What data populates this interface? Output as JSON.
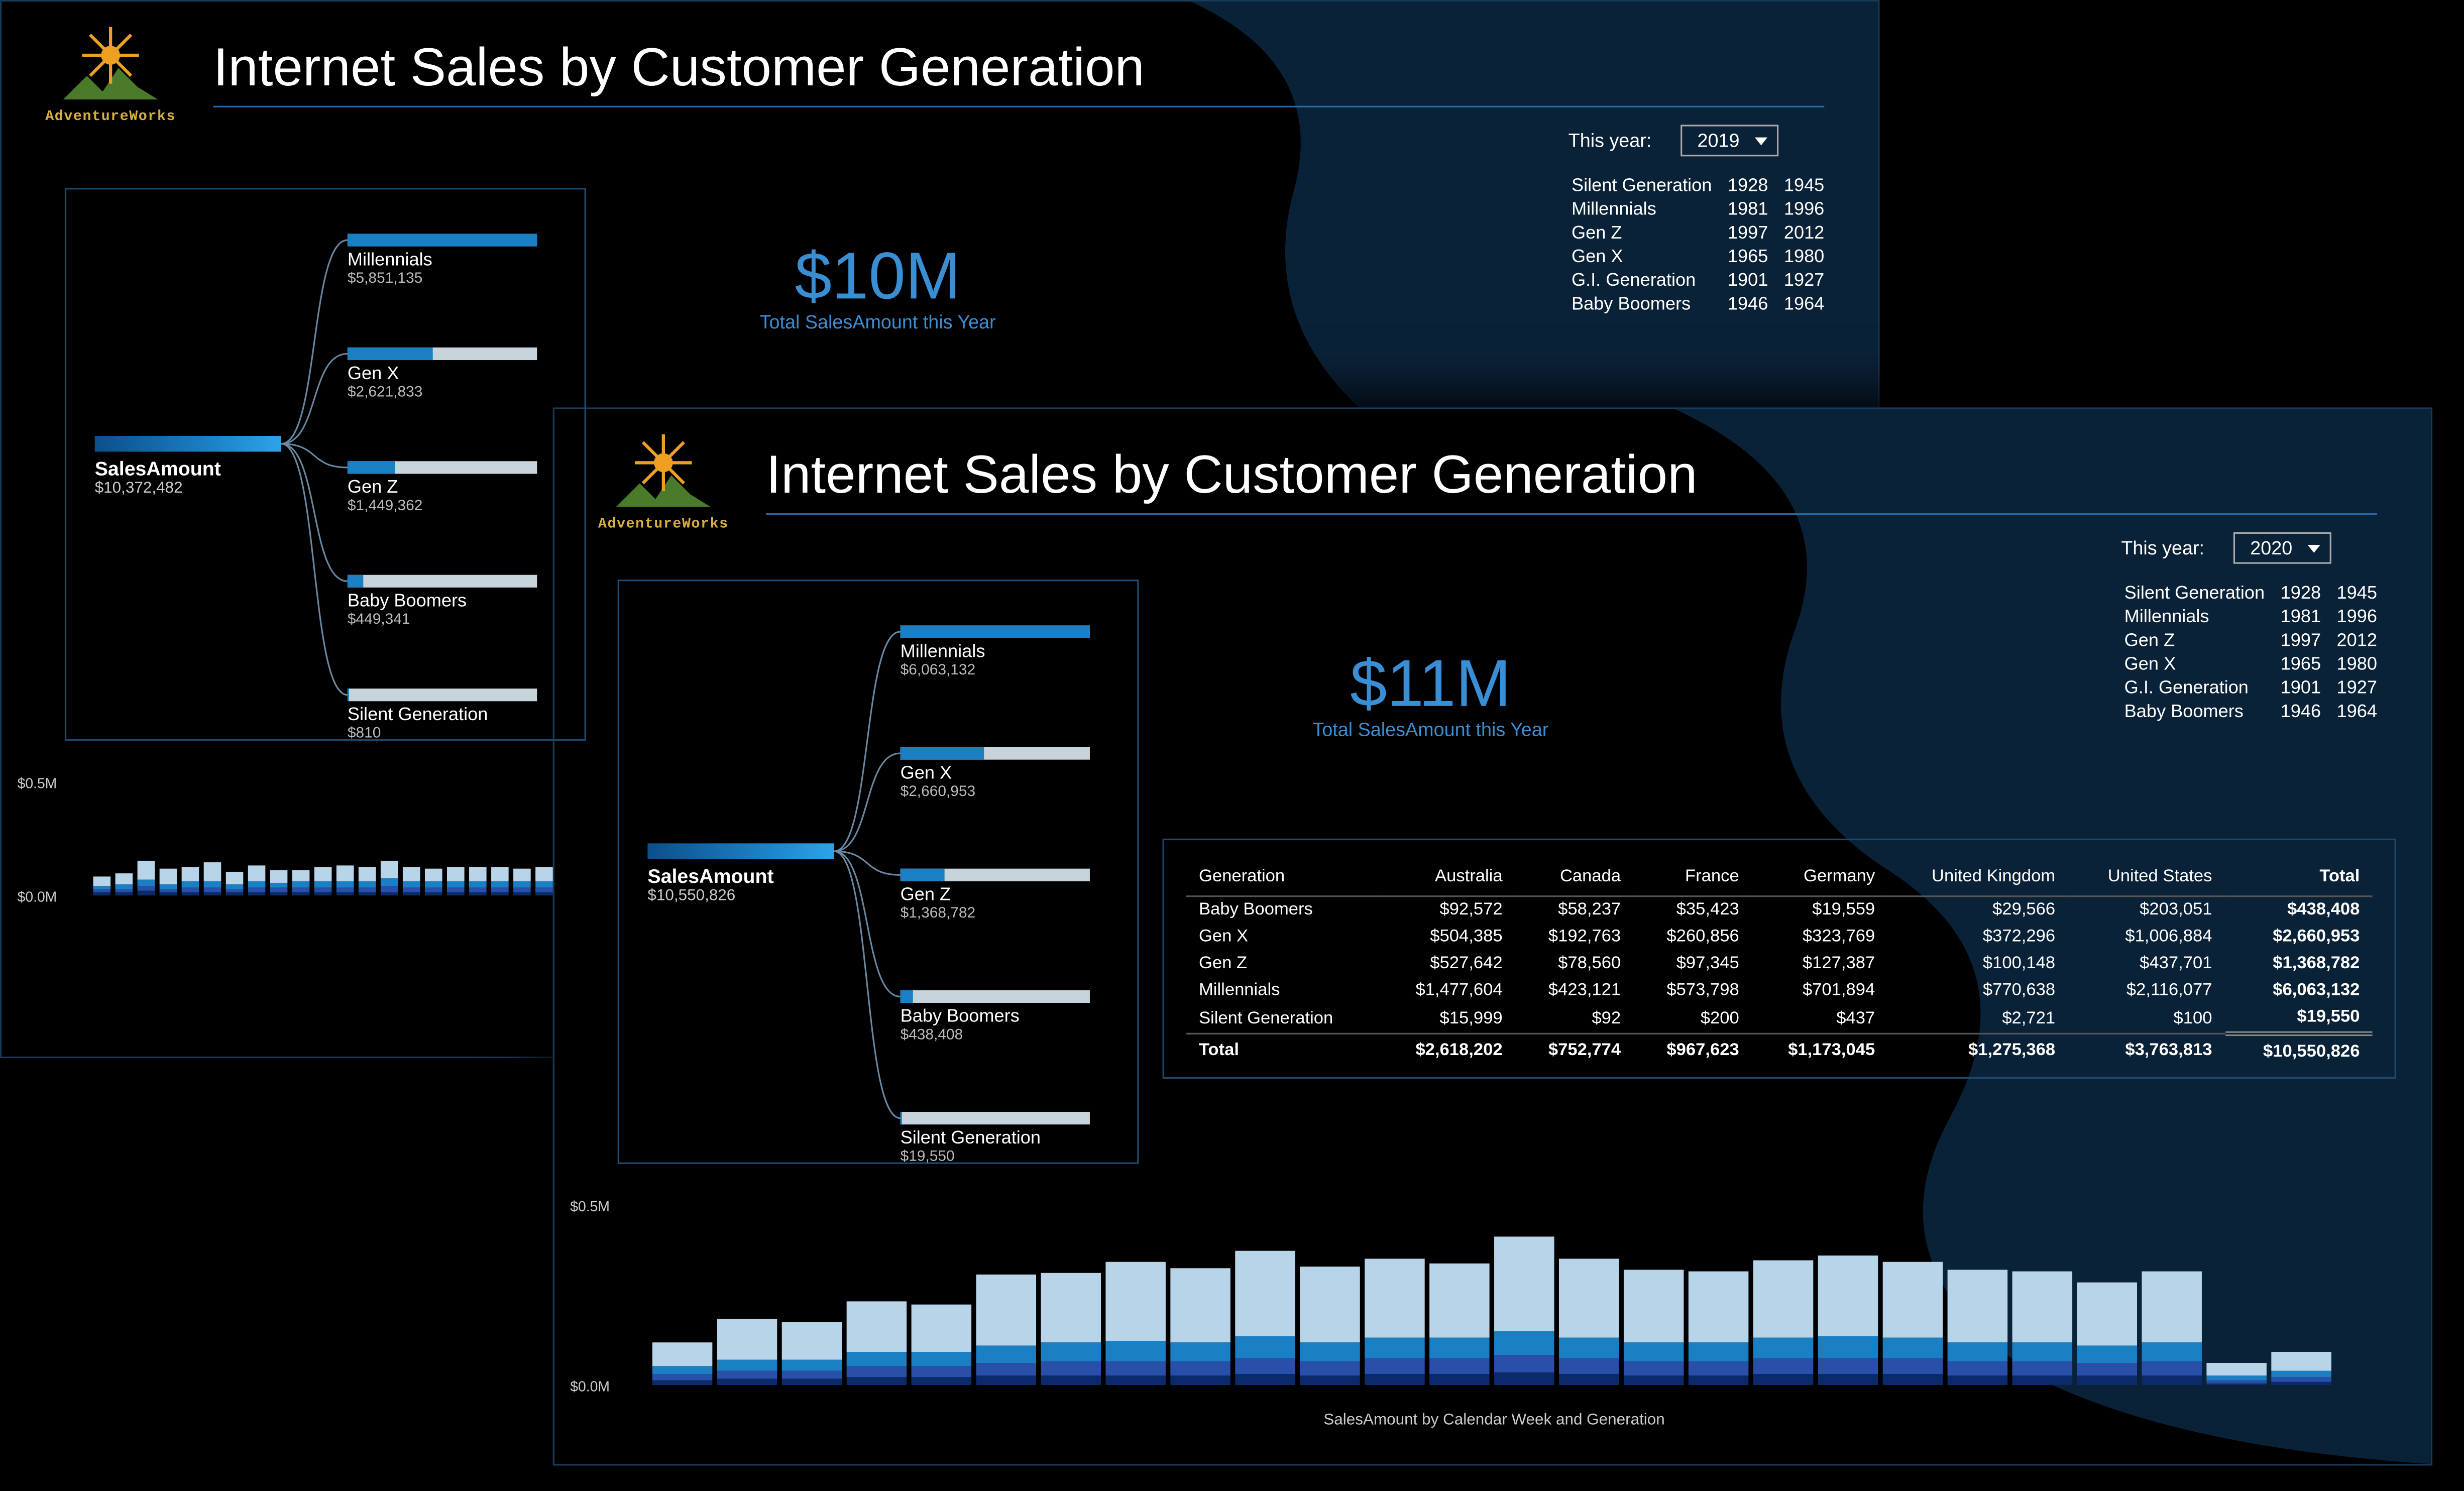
{
  "brand": {
    "name": "AdventureWorks"
  },
  "title": "Internet Sales by Customer Generation",
  "filter_label": "This year:",
  "kpi_label": "Total SalesAmount this Year",
  "generations": [
    {
      "name": "Silent Generation",
      "from": "1928",
      "to": "1945"
    },
    {
      "name": "Millennials",
      "from": "1981",
      "to": "1996"
    },
    {
      "name": "Gen Z",
      "from": "1997",
      "to": "2012"
    },
    {
      "name": "Gen X",
      "from": "1965",
      "to": "1980"
    },
    {
      "name": "G.I. Generation",
      "from": "1901",
      "to": "1927"
    },
    {
      "name": "Baby Boomers",
      "from": "1946",
      "to": "1964"
    }
  ],
  "colors": {
    "bg": "#000000",
    "panel_border": "#1f4a70",
    "accent": "#3a8fd4",
    "bar_track": "#c8d4dc",
    "bar_fill": "#1b7fc4",
    "stack": {
      "millennials": "#b8d4e8",
      "genx": "#2a4fa8",
      "genz": "#1b7fc4",
      "boomers": "#0a2a6a",
      "silent": "#4a8fc8"
    }
  },
  "reports": {
    "r2019": {
      "year": "2019",
      "kpi": "$10M",
      "root": {
        "label": "SalesAmount",
        "value": "$10,372,482"
      },
      "children": [
        {
          "label": "Millennials",
          "value": "$5,851,135",
          "fill": 1.0
        },
        {
          "label": "Gen X",
          "value": "$2,621,833",
          "fill": 0.45
        },
        {
          "label": "Gen Z",
          "value": "$1,449,362",
          "fill": 0.25
        },
        {
          "label": "Baby Boomers",
          "value": "$449,341",
          "fill": 0.08
        },
        {
          "label": "Silent Generation",
          "value": "$810",
          "fill": 0.001
        }
      ],
      "week_axis": {
        "top": "$0.5M",
        "bottom": "$0.0M"
      },
      "weeks": [
        {
          "h": [
            2,
            2,
            2,
            6
          ]
        },
        {
          "h": [
            2,
            2,
            3,
            7
          ]
        },
        {
          "h": [
            3,
            3,
            4,
            12
          ]
        },
        {
          "h": [
            2,
            2,
            3,
            10
          ]
        },
        {
          "h": [
            2,
            3,
            4,
            9
          ]
        },
        {
          "h": [
            2,
            3,
            4,
            12
          ]
        },
        {
          "h": [
            2,
            2,
            3,
            8
          ]
        },
        {
          "h": [
            2,
            3,
            4,
            10
          ]
        },
        {
          "h": [
            2,
            3,
            3,
            8
          ]
        },
        {
          "h": [
            2,
            3,
            4,
            7
          ]
        },
        {
          "h": [
            2,
            3,
            4,
            9
          ]
        },
        {
          "h": [
            2,
            3,
            4,
            10
          ]
        },
        {
          "h": [
            2,
            3,
            4,
            9
          ]
        },
        {
          "h": [
            2,
            4,
            5,
            11
          ]
        },
        {
          "h": [
            2,
            3,
            4,
            9
          ]
        },
        {
          "h": [
            2,
            3,
            4,
            8
          ]
        },
        {
          "h": [
            2,
            3,
            4,
            9
          ]
        },
        {
          "h": [
            2,
            3,
            4,
            9
          ]
        },
        {
          "h": [
            2,
            3,
            4,
            9
          ]
        },
        {
          "h": [
            2,
            3,
            4,
            8
          ]
        },
        {
          "h": [
            2,
            3,
            4,
            9
          ]
        }
      ]
    },
    "r2020": {
      "year": "2020",
      "kpi": "$11M",
      "root": {
        "label": "SalesAmount",
        "value": "$10,550,826"
      },
      "children": [
        {
          "label": "Millennials",
          "value": "$6,063,132",
          "fill": 1.0
        },
        {
          "label": "Gen X",
          "value": "$2,660,953",
          "fill": 0.44
        },
        {
          "label": "Gen Z",
          "value": "$1,368,782",
          "fill": 0.23
        },
        {
          "label": "Baby Boomers",
          "value": "$438,408",
          "fill": 0.07
        },
        {
          "label": "Silent Generation",
          "value": "$19,550",
          "fill": 0.004
        }
      ],
      "week_axis": {
        "top": "$0.5M",
        "bottom": "$0.0M"
      },
      "week_title": "SalesAmount by Calendar Week and Generation",
      "weeks": [
        {
          "h": [
            3,
            4,
            5,
            15
          ]
        },
        {
          "h": [
            4,
            5,
            7,
            26
          ]
        },
        {
          "h": [
            4,
            5,
            7,
            24
          ]
        },
        {
          "h": [
            5,
            7,
            9,
            32
          ]
        },
        {
          "h": [
            5,
            7,
            9,
            30
          ]
        },
        {
          "h": [
            6,
            8,
            11,
            45
          ]
        },
        {
          "h": [
            6,
            9,
            12,
            44
          ]
        },
        {
          "h": [
            6,
            9,
            13,
            50
          ]
        },
        {
          "h": [
            6,
            9,
            12,
            47
          ]
        },
        {
          "h": [
            7,
            10,
            14,
            54
          ]
        },
        {
          "h": [
            6,
            9,
            12,
            48
          ]
        },
        {
          "h": [
            7,
            10,
            13,
            50
          ]
        },
        {
          "h": [
            7,
            10,
            13,
            47
          ]
        },
        {
          "h": [
            8,
            11,
            15,
            60
          ]
        },
        {
          "h": [
            7,
            10,
            13,
            50
          ]
        },
        {
          "h": [
            6,
            9,
            12,
            46
          ]
        },
        {
          "h": [
            6,
            9,
            12,
            45
          ]
        },
        {
          "h": [
            7,
            10,
            13,
            49
          ]
        },
        {
          "h": [
            7,
            10,
            14,
            51
          ]
        },
        {
          "h": [
            7,
            10,
            13,
            48
          ]
        },
        {
          "h": [
            6,
            9,
            12,
            46
          ]
        },
        {
          "h": [
            6,
            9,
            12,
            45
          ]
        },
        {
          "h": [
            6,
            8,
            11,
            40
          ]
        },
        {
          "h": [
            6,
            9,
            12,
            45
          ]
        },
        {
          "h": [
            1,
            2,
            3,
            8
          ]
        },
        {
          "h": [
            2,
            3,
            4,
            12
          ]
        }
      ],
      "matrix": {
        "cols": [
          "Generation",
          "Australia",
          "Canada",
          "France",
          "Germany",
          "United Kingdom",
          "United States",
          "Total"
        ],
        "rows": [
          [
            "Baby Boomers",
            "$92,572",
            "$58,237",
            "$35,423",
            "$19,559",
            "$29,566",
            "$203,051",
            "$438,408"
          ],
          [
            "Gen X",
            "$504,385",
            "$192,763",
            "$260,856",
            "$323,769",
            "$372,296",
            "$1,006,884",
            "$2,660,953"
          ],
          [
            "Gen Z",
            "$527,642",
            "$78,560",
            "$97,345",
            "$127,387",
            "$100,148",
            "$437,701",
            "$1,368,782"
          ],
          [
            "Millennials",
            "$1,477,604",
            "$423,121",
            "$573,798",
            "$701,894",
            "$770,638",
            "$2,116,077",
            "$6,063,132"
          ],
          [
            "Silent Generation",
            "$15,999",
            "$92",
            "$200",
            "$437",
            "$2,721",
            "$100",
            "$19,550"
          ]
        ],
        "total": [
          "Total",
          "$2,618,202",
          "$752,774",
          "$967,623",
          "$1,173,045",
          "$1,275,368",
          "$3,763,813",
          "$10,550,826"
        ]
      }
    }
  }
}
